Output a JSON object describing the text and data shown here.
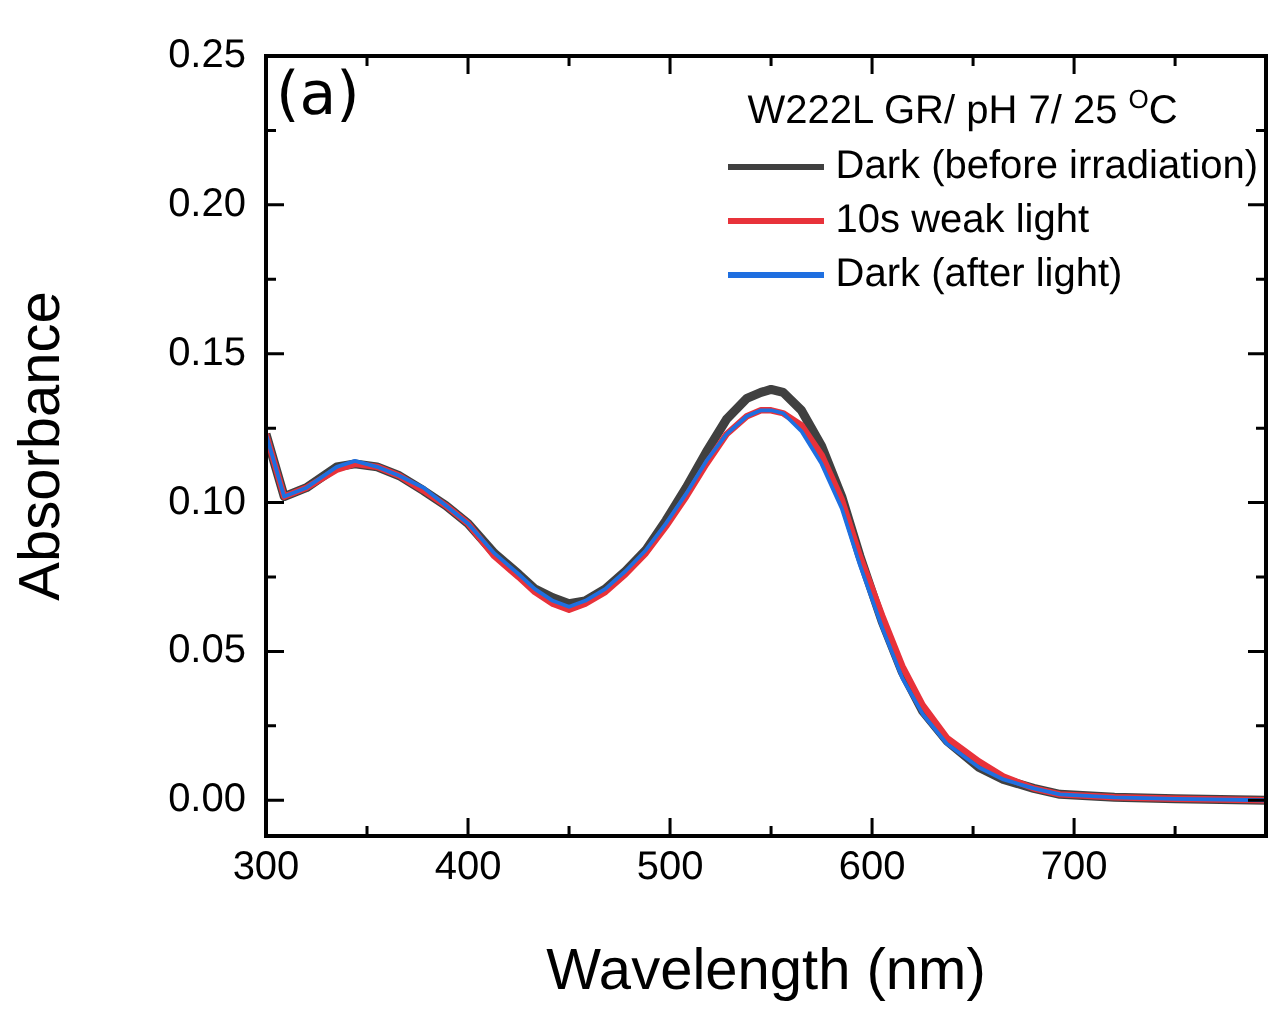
{
  "chart_data": {
    "type": "line",
    "xlabel": "Wavelength (nm)",
    "ylabel": "Absorbance",
    "legend_title": "W222L GR/ pH 7/ 25 $^{O}$C",
    "annotations": [
      "(a)"
    ],
    "x": [
      300,
      309,
      320,
      335,
      344,
      355,
      366,
      378,
      389,
      400,
      413,
      425,
      433,
      442,
      450,
      458,
      468,
      478,
      488,
      498,
      508,
      518,
      528,
      538,
      545,
      550,
      556,
      565,
      575,
      585,
      594,
      605,
      615,
      625,
      637,
      653,
      665,
      680,
      693,
      720,
      750,
      795
    ],
    "series": [
      {
        "name": "Dark (before irradiation)",
        "color": "#404040",
        "values": [
          0.123,
          0.102,
          0.105,
          0.112,
          0.113,
          0.112,
          0.109,
          0.104,
          0.099,
          0.093,
          0.083,
          0.076,
          0.071,
          0.068,
          0.066,
          0.067,
          0.071,
          0.077,
          0.084,
          0.094,
          0.105,
          0.117,
          0.128,
          0.135,
          0.137,
          0.138,
          0.137,
          0.131,
          0.119,
          0.102,
          0.082,
          0.06,
          0.043,
          0.03,
          0.02,
          0.011,
          0.007,
          0.004,
          0.002,
          0.001,
          0.0005,
          0.0
        ]
      },
      {
        "name": "10s weak light",
        "color": "#e8323a",
        "values": [
          0.123,
          0.102,
          0.105,
          0.111,
          0.113,
          0.112,
          0.109,
          0.104,
          0.099,
          0.093,
          0.082,
          0.075,
          0.07,
          0.066,
          0.064,
          0.066,
          0.07,
          0.076,
          0.083,
          0.092,
          0.102,
          0.113,
          0.123,
          0.129,
          0.131,
          0.131,
          0.13,
          0.126,
          0.116,
          0.101,
          0.082,
          0.062,
          0.045,
          0.032,
          0.021,
          0.013,
          0.008,
          0.004,
          0.002,
          0.001,
          0.0005,
          0.0
        ]
      },
      {
        "name": "Dark (after light)",
        "color": "#1f6fe0",
        "values": [
          0.123,
          0.102,
          0.105,
          0.112,
          0.114,
          0.112,
          0.109,
          0.105,
          0.099,
          0.093,
          0.083,
          0.076,
          0.071,
          0.067,
          0.065,
          0.067,
          0.071,
          0.077,
          0.084,
          0.093,
          0.103,
          0.114,
          0.123,
          0.129,
          0.131,
          0.131,
          0.13,
          0.124,
          0.113,
          0.098,
          0.079,
          0.058,
          0.041,
          0.029,
          0.019,
          0.011,
          0.007,
          0.004,
          0.002,
          0.001,
          0.0005,
          0.0
        ]
      }
    ],
    "xlim": [
      300,
      795
    ],
    "xticks": [
      300,
      {
        "value": 350,
        "label": null
      },
      400,
      {
        "value": 450,
        "label": null
      },
      500,
      {
        "value": 550,
        "label": null
      },
      600,
      {
        "value": 650,
        "label": null
      },
      700,
      {
        "value": 750,
        "label": null
      }
    ],
    "ylim": [
      -0.012,
      0.25
    ],
    "yticks": [
      {
        "value": 0,
        "label": "0.00"
      },
      {
        "value": 0.025,
        "label": null
      },
      {
        "value": 0.05,
        "label": "0.05"
      },
      {
        "value": 0.075,
        "label": null
      },
      {
        "value": 0.1,
        "label": "0.10"
      },
      {
        "value": 0.125,
        "label": null
      },
      {
        "value": 0.15,
        "label": "0.15"
      },
      {
        "value": 0.175,
        "label": null
      },
      {
        "value": 0.2,
        "label": "0.20"
      },
      {
        "value": 0.225,
        "label": null
      },
      {
        "value": 0.25,
        "label": "0.25"
      }
    ],
    "legend": "top right",
    "grid": false,
    "marker": "none",
    "line_style": "solid"
  }
}
